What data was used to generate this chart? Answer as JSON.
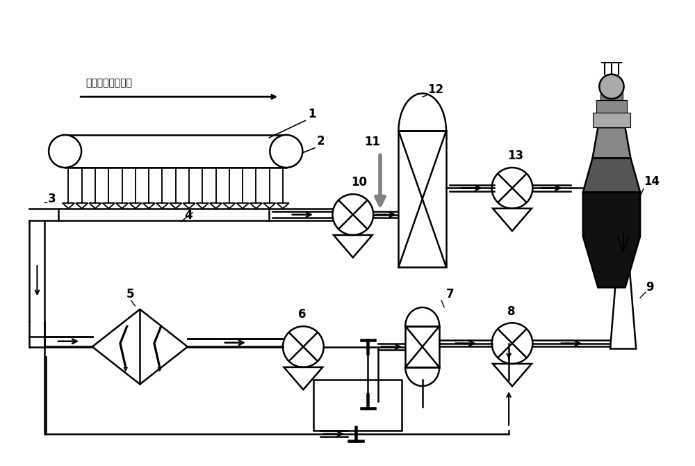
{
  "bg_color": "#ffffff",
  "lc": "#000000",
  "lw": 1.8,
  "title_zh": "烧结台车运行方向",
  "figsize": [
    10.0,
    6.7
  ],
  "dpi": 100
}
